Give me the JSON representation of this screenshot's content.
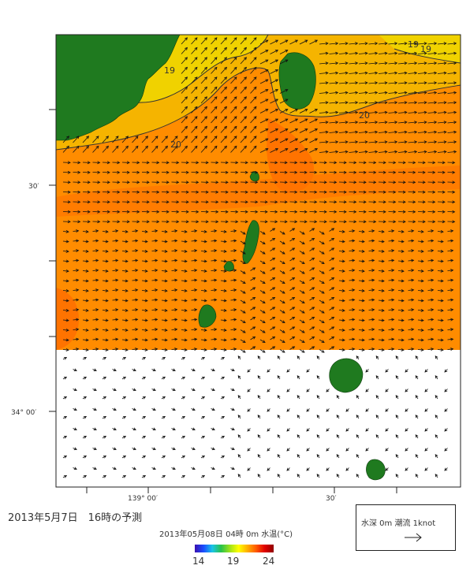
{
  "map": {
    "title": "2013年5月7日　16時の予測",
    "valid_time_label": "2013年05月08日 04時 0m 水温(°C)",
    "axes": {
      "lon_ticks": [
        "139° 00′",
        "30′"
      ],
      "lat_ticks": [
        "30′",
        "34° 00′"
      ]
    },
    "contour_labels": [
      "19",
      "19",
      "19",
      "20",
      "20"
    ],
    "colorbar": {
      "ticks": [
        "14",
        "19",
        "24"
      ],
      "unit": "°C"
    },
    "legend": {
      "label": "水深 0m  潮流 1knot"
    },
    "colors": {
      "land": "#1f7a1f",
      "sea_warm": "#ff8c00",
      "sea_warmer": "#ff7300",
      "sea_cool": "#f5b400",
      "sea_coolest": "#f0d200",
      "no_data": "#ffffff"
    },
    "icons": [
      "current-arrow-icon"
    ]
  }
}
